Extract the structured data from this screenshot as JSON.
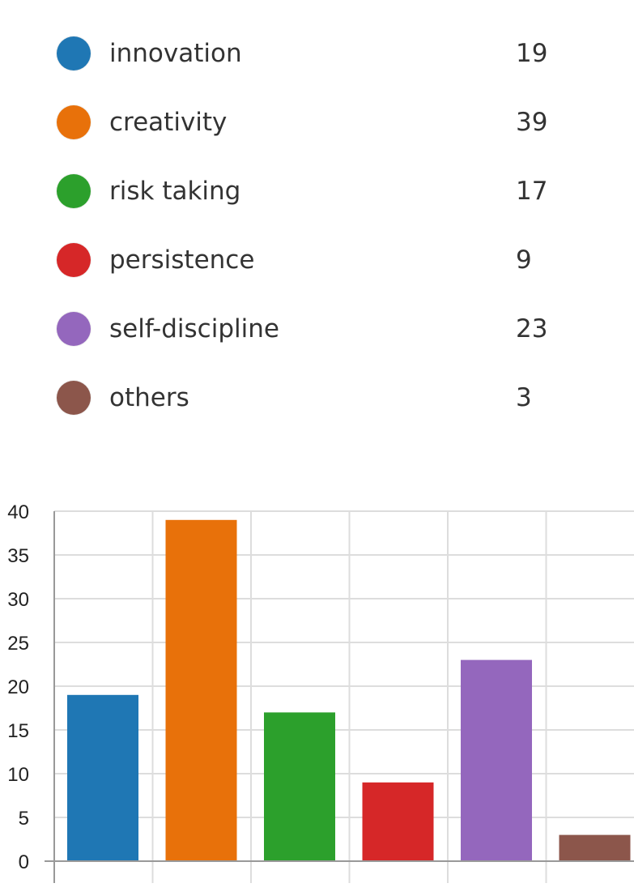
{
  "legend": {
    "items": [
      {
        "label": "innovation",
        "value": "19",
        "color": "#1f77b4"
      },
      {
        "label": "creativity",
        "value": "39",
        "color": "#e8710a"
      },
      {
        "label": "risk taking",
        "value": "17",
        "color": "#2ca02c"
      },
      {
        "label": "persistence",
        "value": "9",
        "color": "#d62728"
      },
      {
        "label": "self-discipline",
        "value": "23",
        "color": "#9467bd"
      },
      {
        "label": "others",
        "value": "3",
        "color": "#8c564b"
      }
    ]
  },
  "chart_data": {
    "type": "bar",
    "categories": [
      "innovation",
      "creativity",
      "risk taking",
      "persistence",
      "self-discipline",
      "others"
    ],
    "values": [
      19,
      39,
      17,
      9,
      23,
      3
    ],
    "colors": [
      "#1f77b4",
      "#e8710a",
      "#2ca02c",
      "#d62728",
      "#9467bd",
      "#8c564b"
    ],
    "title": "",
    "xlabel": "",
    "ylabel": "",
    "ylim": [
      0,
      40
    ],
    "yticks": [
      0,
      5,
      10,
      15,
      20,
      25,
      30,
      35,
      40
    ],
    "grid": true,
    "legend": "top"
  }
}
